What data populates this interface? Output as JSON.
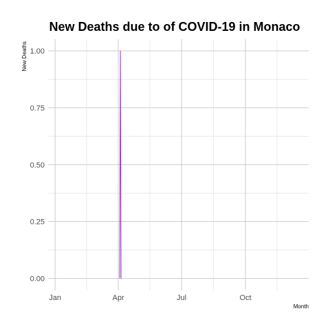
{
  "chart_data": {
    "type": "line",
    "title": "New Deaths due to of COVID-19 in Monaco",
    "xlabel": "Month",
    "ylabel": "New  Deaths",
    "x_ticks": [
      {
        "label": "Jan",
        "date": "2020-01-01"
      },
      {
        "label": "Apr",
        "date": "2020-04-01"
      },
      {
        "label": "Jul",
        "date": "2020-07-01"
      },
      {
        "label": "Oct",
        "date": "2020-10-01"
      }
    ],
    "y_ticks": [
      "0.00",
      "0.25",
      "0.50",
      "0.75",
      "1.00"
    ],
    "xlim": [
      "2019-12-22",
      "2020-12-31"
    ],
    "ylim": [
      0,
      1
    ],
    "grid": true,
    "series": [
      {
        "color": "#9B30D0",
        "points": [
          {
            "x": "2020-04-03",
            "y": 0
          },
          {
            "x": "2020-04-04",
            "y": 1
          },
          {
            "x": "2020-04-05",
            "y": 0
          }
        ]
      }
    ]
  }
}
